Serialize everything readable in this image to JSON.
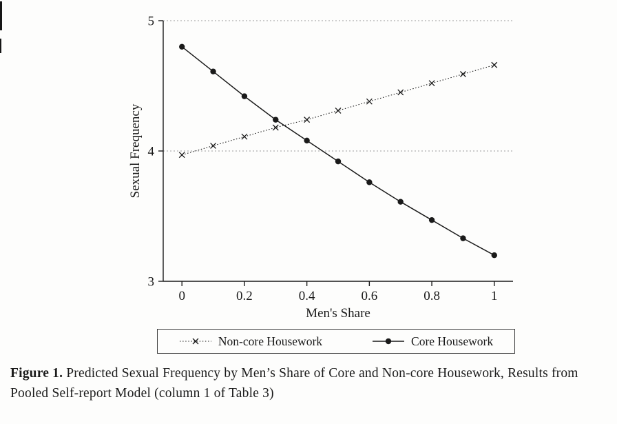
{
  "chart_data": {
    "type": "line",
    "title": "",
    "xlabel": "Men's Share",
    "ylabel": "Sexual Frequency",
    "xlim": [
      -0.06,
      1.06
    ],
    "ylim": [
      3,
      5
    ],
    "x_ticks": [
      0,
      0.2,
      0.4,
      0.6,
      0.8,
      1
    ],
    "x_tick_labels": [
      "0",
      "0.2",
      "0.4",
      "0.6",
      "0.8",
      "1"
    ],
    "y_ticks": [
      3,
      4,
      5
    ],
    "y_tick_labels": [
      "3",
      "4",
      "5"
    ],
    "y_gridlines": [
      4,
      5
    ],
    "grid": "horizontal-dotted",
    "legend_position": "bottom",
    "x": [
      0,
      0.1,
      0.2,
      0.3,
      0.4,
      0.5,
      0.6,
      0.7,
      0.8,
      0.9,
      1.0
    ],
    "series": [
      {
        "name": "Non-core Housework",
        "marker": "x",
        "line_style": "dotted",
        "color": "#1a1a1a",
        "values": [
          3.97,
          4.04,
          4.11,
          4.18,
          4.24,
          4.31,
          4.38,
          4.45,
          4.52,
          4.59,
          4.66
        ]
      },
      {
        "name": "Core Housework",
        "marker": "circle",
        "line_style": "solid",
        "color": "#1a1a1a",
        "values": [
          4.8,
          4.61,
          4.42,
          4.24,
          4.08,
          3.92,
          3.76,
          3.61,
          3.47,
          3.33,
          3.2
        ]
      }
    ]
  },
  "caption": {
    "label": "Figure 1.",
    "text": "Predicted Sexual Frequency by Men’s Share of Core and Non-core Housework, Results from Pooled Self-report Model (column 1 of Table 3)"
  }
}
